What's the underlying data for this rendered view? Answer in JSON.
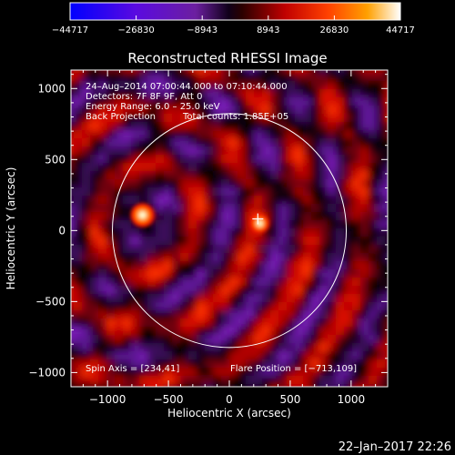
{
  "chart_data": {
    "type": "heatmap",
    "title": "Reconstructed RHESSI Image",
    "xlabel": "Heliocentric X (arcsec)",
    "ylabel": "Heliocentric Y (arcsec)",
    "xlim": [
      -1300,
      1300
    ],
    "ylim": [
      -1100,
      1130
    ],
    "xticks": [
      -1000,
      -500,
      0,
      500,
      1000
    ],
    "xtick_labels": [
      "−1000",
      "−500",
      "0",
      "500",
      "1000"
    ],
    "yticks": [
      -1000,
      -500,
      0,
      500,
      1000
    ],
    "ytick_labels": [
      "−1000",
      "−500",
      "0",
      "500",
      "1000"
    ],
    "colorbar": {
      "min": -44717,
      "max": 44717,
      "ticks": [
        -44717,
        -26830,
        -8943,
        8943,
        26830,
        44717
      ],
      "tick_labels": [
        "−44717",
        "−26830",
        "−8943",
        "8943",
        "26830",
        "44717"
      ]
    },
    "solar_limb": {
      "cx": 0,
      "cy": 0,
      "r": 960
    },
    "sources": [
      {
        "x": -713,
        "y": 109,
        "intensity": 44717
      },
      {
        "x": 250,
        "y": 50,
        "intensity": 36000
      }
    ],
    "flare_marker": {
      "x": 234,
      "y": 82
    },
    "annotations": {
      "time_range": "24–Aug–2014 07:00:44.000 to 07:10:44.000",
      "detectors": "Detectors: 7F 8F 9F, Att 0",
      "energy": "Energy Range: 6.0 – 25.0 keV",
      "method": "Back Projection",
      "counts": "Total counts: 1.85E+05",
      "spin_axis": "Spin Axis = [234,41]",
      "flare_position": "Flare Position = [−713,109]"
    }
  },
  "footer": {
    "date": "22–Jan–2017 22:26"
  },
  "colors": {
    "background": "#000000",
    "text": "#ffffff",
    "colormap": [
      "#0000ff",
      "#6a0ad8",
      "#6c1fa0",
      "#10001a",
      "#000000",
      "#3a0000",
      "#c00000",
      "#ff4000",
      "#ffa000",
      "#ffff90",
      "#ffffff"
    ]
  }
}
